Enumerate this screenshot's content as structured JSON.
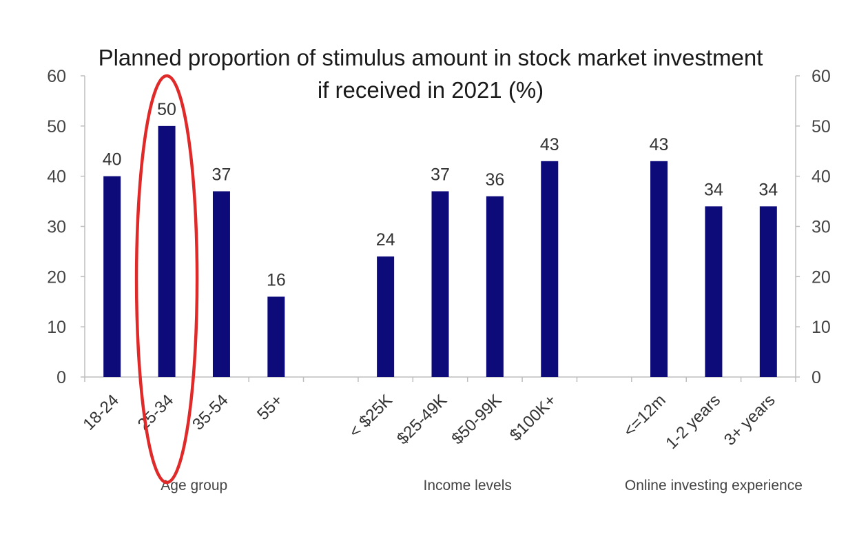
{
  "chart_data": {
    "type": "bar",
    "title": "Planned proportion of stimulus amount in stock market investment",
    "subtitle": "if received in 2021 (%)",
    "categories": [
      "18-24",
      "25-34",
      "35-54",
      "55+",
      "< $25K",
      "$25-49K",
      "$50-99K",
      "$100K+",
      "<=12m",
      "1-2 years",
      "3+ years"
    ],
    "values": [
      40,
      50,
      37,
      16,
      24,
      37,
      36,
      43,
      43,
      34,
      34
    ],
    "value_labels": [
      "40",
      "50",
      "37",
      "16",
      "24",
      "37",
      "36",
      "43",
      "43",
      "34",
      "34"
    ],
    "groups": [
      {
        "label": "Age group",
        "categories": [
          "18-24",
          "25-34",
          "35-54",
          "55+"
        ]
      },
      {
        "label": "Income levels",
        "categories": [
          "< $25K",
          "$25-49K",
          "$50-99K",
          "$100K+"
        ]
      },
      {
        "label": "Online investing experience",
        "categories": [
          "<=12m",
          "1-2 years",
          "3+ years"
        ]
      }
    ],
    "ylim": [
      0,
      60
    ],
    "yticks": [
      "0",
      "10",
      "20",
      "30",
      "40",
      "50",
      "60"
    ],
    "y2ticks": [
      "0",
      "10",
      "20",
      "30",
      "40",
      "50",
      "60"
    ],
    "grid": false,
    "bar_color": "#0d0a7a",
    "highlight": {
      "category": "25-34",
      "shape": "ellipse",
      "color": "#e02a2a"
    }
  }
}
